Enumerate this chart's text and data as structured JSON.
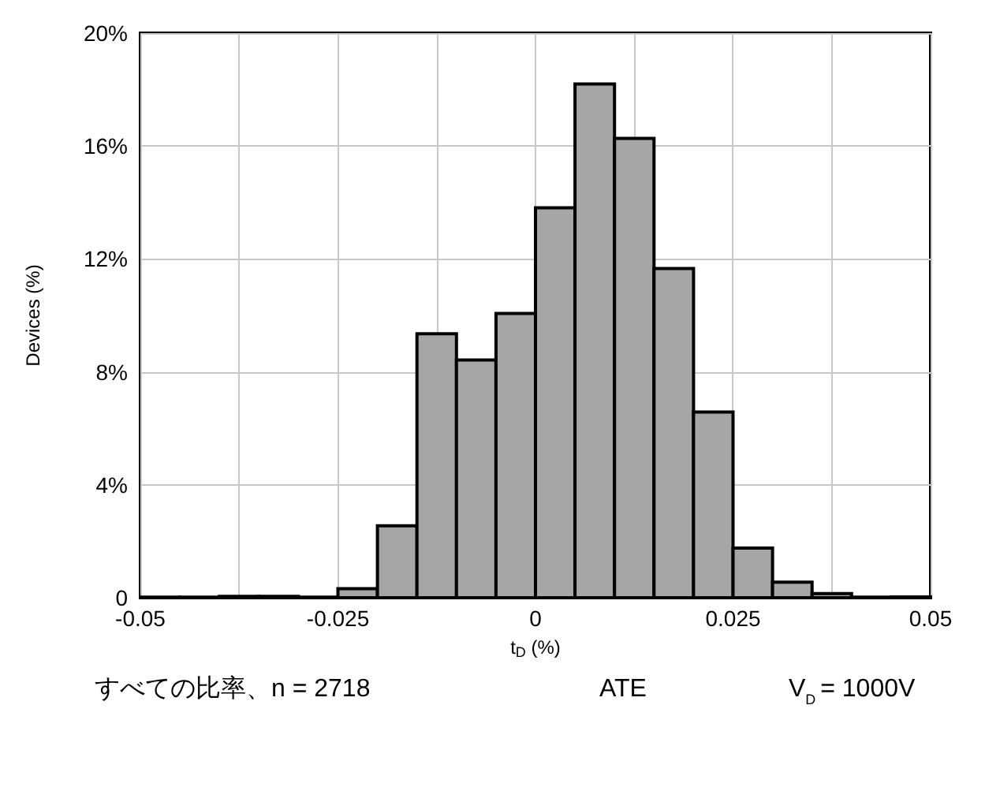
{
  "chart_data": {
    "type": "histogram",
    "xlabel": "t$_{D}$ (%)",
    "ylabel": "Devices (%)",
    "bins": [
      -0.05,
      -0.045,
      -0.04,
      -0.035,
      -0.03,
      -0.025,
      -0.02,
      -0.015,
      -0.01,
      -0.005,
      0,
      0.005,
      0.01,
      0.015,
      0.02,
      0.025,
      0.03,
      0.035,
      0.04,
      0.045,
      0.05
    ],
    "values": [
      0.02,
      0.02,
      0.05,
      0.05,
      0.02,
      0.32,
      2.55,
      9.35,
      8.42,
      10.07,
      13.81,
      18.2,
      16.27,
      11.66,
      6.58,
      1.76,
      0.55,
      0.15,
      0.02,
      0.03
    ],
    "color": "#a6a6a6",
    "xlim": [
      -0.05,
      0.05
    ],
    "xticks": [
      -0.05,
      {
        "value": -0.0375,
        "label": null
      },
      -0.025,
      {
        "value": -0.0125,
        "label": null
      },
      0,
      {
        "value": 0.0125,
        "label": null
      },
      0.025,
      {
        "value": 0.0375,
        "label": null
      },
      0.05
    ],
    "ylim": [
      0,
      20
    ],
    "yticks": [
      0,
      {
        "value": 4,
        "label": "4%"
      },
      {
        "value": 8,
        "label": "8%"
      },
      {
        "value": 12,
        "label": "12%"
      },
      {
        "value": 16,
        "label": "16%"
      },
      {
        "value": 20,
        "label": "20%"
      }
    ],
    "grid": true,
    "annotations": [
      "すべての比率、n = 2718",
      "ATE",
      "V$_{D}$ = 1000V"
    ]
  }
}
